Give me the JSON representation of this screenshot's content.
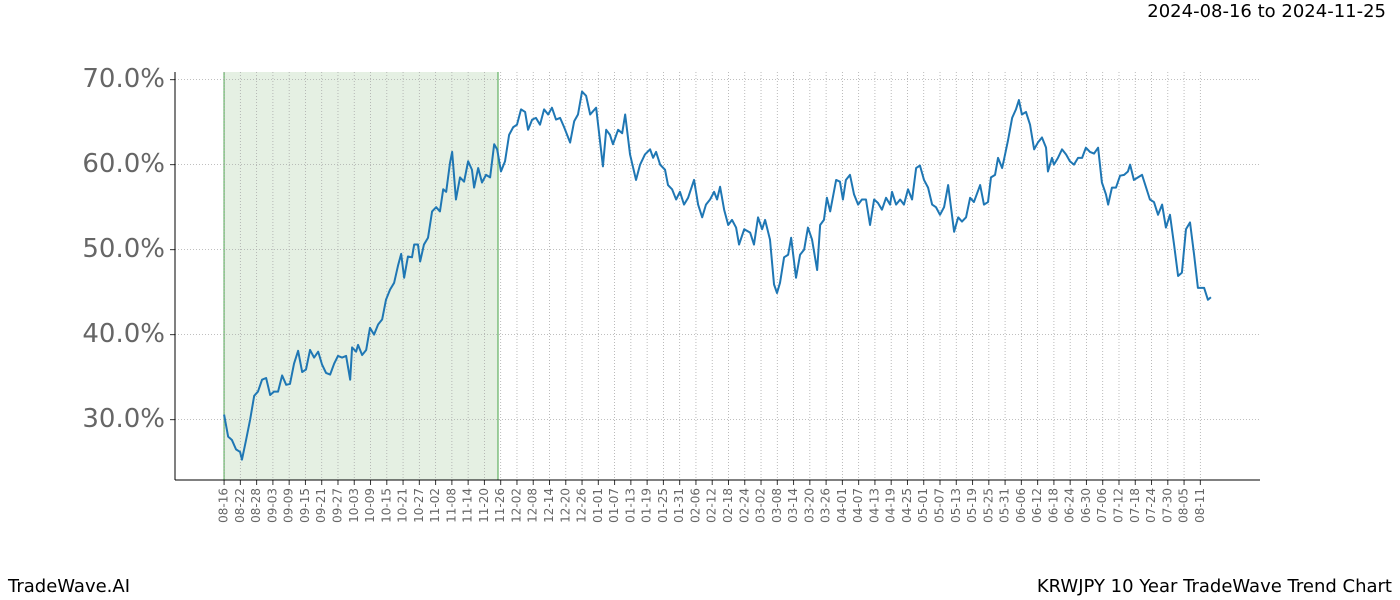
{
  "chart_data": {
    "type": "line",
    "subtitle": "2024-08-16 to 2024-11-25",
    "footer_left": "TradeWave.AI",
    "footer_right": "KRWJPY 10 Year TradeWave Trend Chart",
    "color": "#1f77b4",
    "highlight_color": "#e5f0e3",
    "highlight_range": [
      0,
      101
    ],
    "grid": true,
    "xlim": [
      -18.1,
      382
    ],
    "ylim": [
      22.9,
      70.9
    ],
    "yticks": [
      {
        "value": 30,
        "label": "30.0%"
      },
      {
        "value": 40,
        "label": "40.0%"
      },
      {
        "value": 50,
        "label": "50.0%"
      },
      {
        "value": 60,
        "label": "60.0%"
      },
      {
        "value": 70,
        "label": "70.0%"
      }
    ],
    "xticks": [
      {
        "value": 0,
        "label": "08-16"
      },
      {
        "value": 6,
        "label": "08-22"
      },
      {
        "value": 12,
        "label": "08-28"
      },
      {
        "value": 18,
        "label": "09-03"
      },
      {
        "value": 24,
        "label": "09-09"
      },
      {
        "value": 30,
        "label": "09-15"
      },
      {
        "value": 36,
        "label": "09-21"
      },
      {
        "value": 42,
        "label": "09-27"
      },
      {
        "value": 48,
        "label": "10-03"
      },
      {
        "value": 54,
        "label": "10-09"
      },
      {
        "value": 60,
        "label": "10-15"
      },
      {
        "value": 66,
        "label": "10-21"
      },
      {
        "value": 72,
        "label": "10-27"
      },
      {
        "value": 78,
        "label": "11-02"
      },
      {
        "value": 84,
        "label": "11-08"
      },
      {
        "value": 90,
        "label": "11-14"
      },
      {
        "value": 96,
        "label": "11-20"
      },
      {
        "value": 102,
        "label": "11-26"
      },
      {
        "value": 108,
        "label": "12-02"
      },
      {
        "value": 114,
        "label": "12-08"
      },
      {
        "value": 120,
        "label": "12-14"
      },
      {
        "value": 126,
        "label": "12-20"
      },
      {
        "value": 132,
        "label": "12-26"
      },
      {
        "value": 138,
        "label": "01-01"
      },
      {
        "value": 144,
        "label": "01-07"
      },
      {
        "value": 150,
        "label": "01-13"
      },
      {
        "value": 156,
        "label": "01-19"
      },
      {
        "value": 162,
        "label": "01-25"
      },
      {
        "value": 168,
        "label": "01-31"
      },
      {
        "value": 174,
        "label": "02-06"
      },
      {
        "value": 180,
        "label": "02-12"
      },
      {
        "value": 186,
        "label": "02-18"
      },
      {
        "value": 192,
        "label": "02-24"
      },
      {
        "value": 198,
        "label": "03-02"
      },
      {
        "value": 204,
        "label": "03-08"
      },
      {
        "value": 210,
        "label": "03-14"
      },
      {
        "value": 216,
        "label": "03-20"
      },
      {
        "value": 222,
        "label": "03-26"
      },
      {
        "value": 228,
        "label": "04-01"
      },
      {
        "value": 234,
        "label": "04-07"
      },
      {
        "value": 240,
        "label": "04-13"
      },
      {
        "value": 246,
        "label": "04-19"
      },
      {
        "value": 252,
        "label": "04-25"
      },
      {
        "value": 258,
        "label": "05-01"
      },
      {
        "value": 264,
        "label": "05-07"
      },
      {
        "value": 270,
        "label": "05-13"
      },
      {
        "value": 276,
        "label": "05-19"
      },
      {
        "value": 282,
        "label": "05-25"
      },
      {
        "value": 288,
        "label": "05-31"
      },
      {
        "value": 294,
        "label": "06-06"
      },
      {
        "value": 300,
        "label": "06-12"
      },
      {
        "value": 306,
        "label": "06-18"
      },
      {
        "value": 312,
        "label": "06-24"
      },
      {
        "value": 318,
        "label": "06-30"
      },
      {
        "value": 324,
        "label": "07-06"
      },
      {
        "value": 330,
        "label": "07-12"
      },
      {
        "value": 336,
        "label": "07-18"
      },
      {
        "value": 342,
        "label": "07-24"
      },
      {
        "value": 348,
        "label": "07-30"
      },
      {
        "value": 354,
        "label": "08-05"
      },
      {
        "value": 360,
        "label": "08-11"
      }
    ],
    "x": [
      0,
      1.5,
      2.9,
      4.4,
      5.9,
      6.6,
      8.1,
      9.6,
      11.1,
      12.5,
      14.0,
      15.5,
      17.0,
      18.4,
      19.9,
      21.4,
      22.9,
      24.3,
      25.8,
      27.3,
      28.8,
      30.2,
      31.7,
      33.2,
      34.7,
      36.1,
      37.6,
      39.1,
      40.6,
      42.0,
      43.5,
      45.0,
      46.5,
      47.2,
      48.7,
      49.4,
      50.9,
      52.4,
      53.8,
      55.3,
      56.8,
      58.3,
      59.7,
      61.2,
      62.7,
      64.2,
      65.3,
      66.4,
      67.8,
      69.3,
      70.1,
      71.5,
      72.3,
      73.7,
      75.2,
      76.7,
      78.2,
      79.6,
      80.8,
      81.9,
      83.3,
      84.1,
      85.5,
      87.0,
      88.5,
      90.0,
      91.4,
      92.2,
      93.7,
      95.1,
      96.6,
      98.1,
      99.6,
      100.7,
      102.1,
      103.6,
      105.1,
      106.6,
      108.0,
      109.5,
      111.0,
      112.1,
      113.6,
      115.0,
      116.5,
      118.0,
      119.5,
      120.9,
      122.4,
      123.9,
      125.4,
      127.6,
      129.1,
      130.5,
      132.0,
      133.5,
      135.0,
      137.2,
      139.7,
      140.9,
      142.3,
      143.4,
      145.3,
      146.8,
      147.9,
      149.7,
      151.9,
      153.4,
      155.2,
      157.1,
      158.2,
      159.3,
      160.8,
      162.6,
      163.7,
      165.2,
      166.7,
      168.1,
      169.6,
      171.1,
      173.3,
      174.8,
      176.3,
      177.7,
      179.2,
      180.7,
      181.8,
      182.9,
      184.4,
      185.9,
      187.3,
      188.8,
      189.9,
      191.8,
      194.0,
      195.4,
      196.9,
      198.4,
      199.5,
      201.3,
      202.8,
      203.9,
      205.0,
      206.5,
      208.0,
      209.1,
      210.9,
      212.4,
      213.9,
      215.3,
      216.8,
      218.7,
      219.8,
      221.2,
      222.3,
      223.5,
      225.7,
      227.1,
      228.2,
      229.3,
      230.8,
      232.3,
      233.8,
      235.2,
      236.7,
      238.2,
      239.7,
      241.1,
      242.6,
      244.1,
      245.6,
      246.3,
      247.8,
      249.3,
      250.7,
      252.2,
      253.7,
      255.2,
      256.6,
      258.1,
      259.6,
      261.1,
      262.5,
      264.0,
      265.5,
      267.0,
      269.2,
      270.7,
      272.1,
      273.6,
      275.1,
      276.5,
      278.8,
      280.2,
      281.7,
      282.8,
      284.3,
      285.4,
      286.9,
      287.6,
      289.1,
      290.6,
      292.0,
      293.1,
      294.2,
      295.7,
      297.2,
      298.7,
      300.1,
      301.6,
      303.1,
      303.8,
      305.3,
      306.0,
      307.5,
      309.0,
      310.5,
      311.9,
      313.4,
      314.9,
      316.4,
      317.8,
      319.3,
      320.8,
      322.3,
      323.7,
      325.2,
      326.0,
      327.4,
      328.9,
      330.4,
      331.9,
      333.3,
      334.1,
      335.5,
      337.0,
      338.5,
      340.0,
      341.4,
      342.9,
      344.4,
      345.9,
      347.3,
      348.8,
      350.3,
      351.8,
      353.2,
      354.7,
      356.2,
      357.7,
      359.1,
      361.4,
      362.8,
      363.9
    ],
    "values": [
      30.6,
      28.0,
      27.6,
      26.5,
      26.2,
      25.3,
      27.6,
      30.0,
      32.8,
      33.3,
      34.7,
      34.9,
      32.9,
      33.3,
      33.3,
      35.2,
      34.1,
      34.2,
      36.6,
      38.1,
      35.6,
      35.9,
      38.2,
      37.3,
      38.0,
      36.5,
      35.5,
      35.3,
      36.6,
      37.5,
      37.3,
      37.5,
      34.7,
      38.5,
      38.0,
      38.8,
      37.6,
      38.2,
      40.8,
      40.0,
      41.2,
      41.8,
      44.1,
      45.3,
      46.1,
      48.2,
      49.5,
      46.7,
      49.2,
      49.1,
      50.6,
      50.6,
      48.6,
      50.6,
      51.4,
      54.5,
      55.0,
      54.5,
      57.1,
      56.8,
      60.2,
      61.5,
      55.9,
      58.5,
      58.0,
      60.4,
      59.4,
      57.3,
      59.6,
      57.9,
      58.8,
      58.5,
      62.4,
      61.8,
      59.2,
      60.4,
      63.5,
      64.4,
      64.7,
      66.5,
      66.2,
      64.1,
      65.3,
      65.5,
      64.7,
      66.5,
      65.9,
      66.7,
      65.3,
      65.5,
      64.4,
      62.6,
      65.1,
      65.9,
      68.6,
      68.1,
      65.9,
      66.7,
      59.8,
      64.1,
      63.5,
      62.4,
      64.1,
      63.7,
      65.9,
      61.2,
      58.2,
      60.0,
      61.2,
      61.8,
      60.8,
      61.5,
      60.0,
      59.4,
      57.6,
      57.1,
      55.9,
      56.8,
      55.3,
      56.1,
      58.2,
      55.3,
      53.8,
      55.3,
      55.9,
      56.8,
      55.9,
      57.4,
      54.7,
      52.9,
      53.5,
      52.6,
      50.6,
      52.4,
      52.0,
      50.6,
      53.8,
      52.4,
      53.5,
      51.2,
      45.9,
      44.9,
      46.1,
      49.1,
      49.4,
      51.4,
      46.7,
      49.4,
      50.0,
      52.6,
      51.2,
      47.6,
      52.9,
      53.5,
      56.1,
      54.5,
      58.2,
      58.0,
      55.9,
      58.2,
      58.8,
      56.5,
      55.3,
      55.9,
      55.9,
      52.9,
      55.9,
      55.5,
      54.7,
      56.1,
      55.3,
      56.8,
      55.3,
      55.9,
      55.3,
      57.1,
      55.9,
      59.6,
      59.9,
      58.2,
      57.3,
      55.3,
      55.0,
      54.1,
      55.0,
      57.6,
      52.1,
      53.8,
      53.3,
      53.8,
      56.1,
      55.6,
      57.6,
      55.3,
      55.6,
      58.5,
      58.8,
      60.8,
      59.6,
      60.6,
      62.9,
      65.5,
      66.5,
      67.6,
      65.9,
      66.2,
      64.7,
      61.8,
      62.6,
      63.2,
      62.0,
      59.2,
      60.8,
      60.0,
      60.8,
      61.8,
      61.2,
      60.4,
      60.0,
      60.8,
      60.8,
      62.0,
      61.5,
      61.3,
      62.0,
      57.9,
      56.5,
      55.3,
      57.3,
      57.3,
      58.7,
      58.8,
      59.2,
      60.0,
      58.2,
      58.5,
      58.8,
      57.3,
      55.9,
      55.6,
      54.1,
      55.3,
      52.6,
      54.1,
      50.6,
      46.9,
      47.3,
      52.4,
      53.2,
      49.4,
      45.5,
      45.5,
      44.1,
      44.4
    ]
  }
}
